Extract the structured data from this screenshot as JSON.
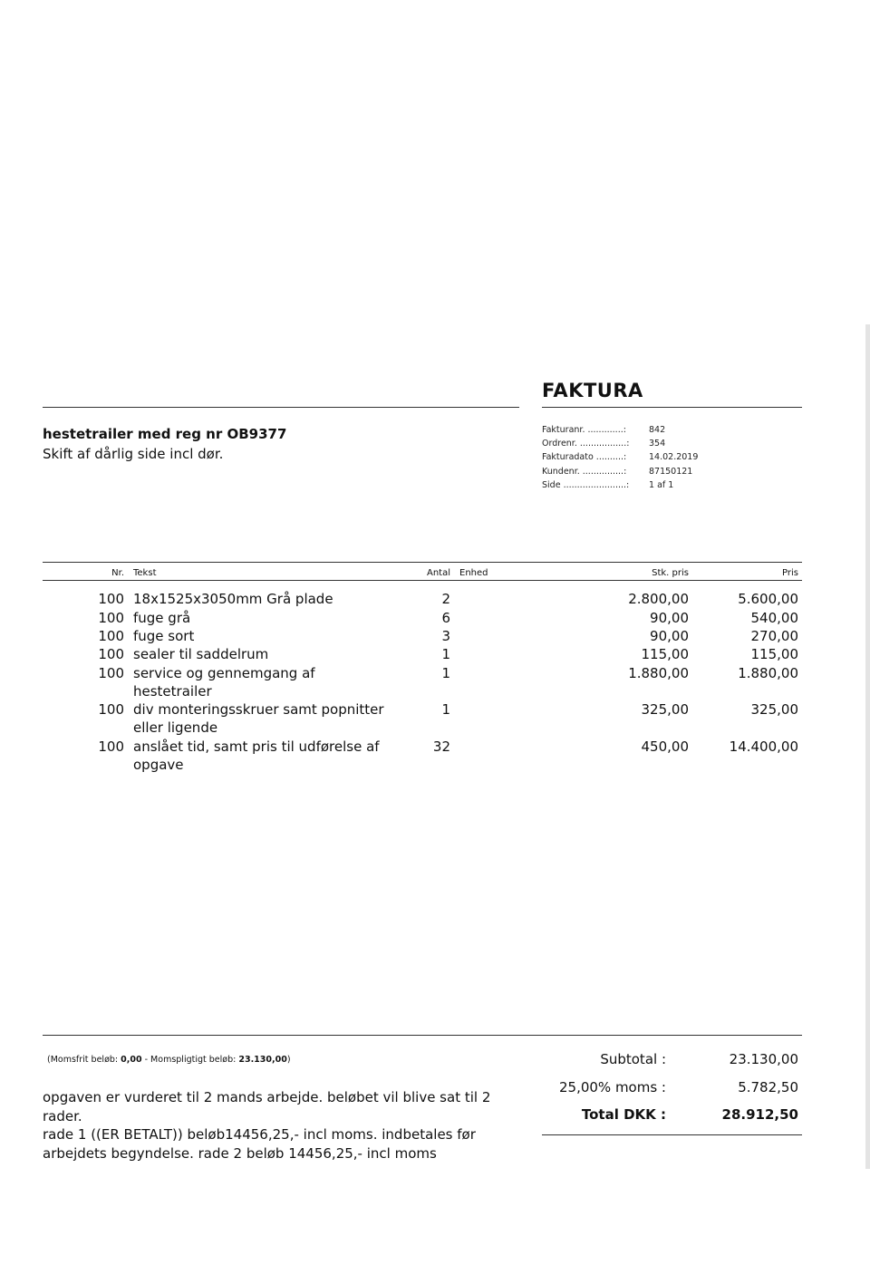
{
  "title": "FAKTURA",
  "subject": "hestetrailer med reg nr OB9377",
  "subject_line2": "Skift af dårlig side incl dør.",
  "meta": [
    {
      "label": "Fakturanr. .............:",
      "value": "842"
    },
    {
      "label": "Ordrenr. .................:",
      "value": "354"
    },
    {
      "label": "Fakturadato ..........:",
      "value": "14.02.2019"
    },
    {
      "label": "Kundenr. ...............:",
      "value": "87150121"
    },
    {
      "label": "Side .......................:",
      "value": "1 af 1"
    }
  ],
  "headers": {
    "nr": "Nr.",
    "tekst": "Tekst",
    "antal": "Antal",
    "enhed": "Enhed",
    "stk_pris": "Stk. pris",
    "pris": "Pris"
  },
  "lines": [
    {
      "nr": "100",
      "tekst": "18x1525x3050mm Grå plade",
      "antal": "2",
      "stk_pris": "2.800,00",
      "pris": "5.600,00"
    },
    {
      "nr": "100",
      "tekst": "fuge grå",
      "antal": "6",
      "stk_pris": "90,00",
      "pris": "540,00"
    },
    {
      "nr": "100",
      "tekst": "fuge sort",
      "antal": "3",
      "stk_pris": "90,00",
      "pris": "270,00"
    },
    {
      "nr": "100",
      "tekst": "sealer til saddelrum",
      "antal": "1",
      "stk_pris": "115,00",
      "pris": "115,00"
    },
    {
      "nr": "100",
      "tekst": "service og gennemgang af hestetrailer",
      "antal": "1",
      "stk_pris": "1.880,00",
      "pris": "1.880,00"
    },
    {
      "nr": "100",
      "tekst": "div monteringsskruer samt popnitter eller ligende",
      "antal": "1",
      "stk_pris": "325,00",
      "pris": "325,00"
    },
    {
      "nr": "100",
      "tekst": "anslået tid, samt pris til udførelse af opgave",
      "antal": "32",
      "stk_pris": "450,00",
      "pris": "14.400,00"
    }
  ],
  "vat_info": {
    "prefix": "(Momsfrit beløb: ",
    "momsfrit": "0,00",
    "middle": " - Momspligtigt beløb: ",
    "momspligtigt": "23.130,00",
    "suffix": ")"
  },
  "note": "opgaven er vurderet til 2 mands arbejde. beløbet vil blive sat til 2 rader.\nrade 1 ((ER BETALT)) beløb14456,25,- incl moms. indbetales før arbejdets begyndelse. rade 2 beløb 14456,25,- incl moms",
  "totals": {
    "subtotal_label": "Subtotal :",
    "subtotal": "23.130,00",
    "moms_label": "25,00% moms :",
    "moms": "5.782,50",
    "total_label": "Total DKK :",
    "total": "28.912,50"
  }
}
